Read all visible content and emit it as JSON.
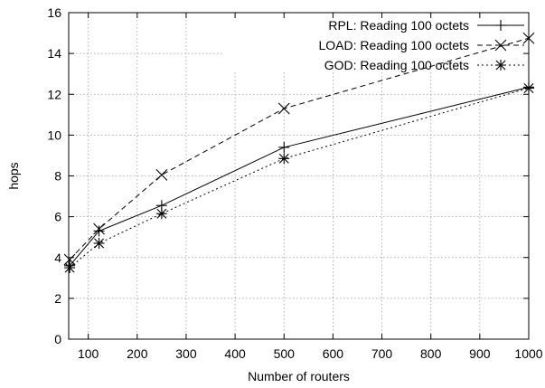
{
  "chart_data": {
    "type": "line",
    "title": "",
    "xlabel": "Number of routers",
    "ylabel": "hops",
    "xlim": [
      60,
      1000
    ],
    "ylim": [
      0,
      16
    ],
    "xticks": [
      100,
      200,
      300,
      400,
      500,
      600,
      700,
      800,
      900,
      1000
    ],
    "yticks": [
      0,
      2,
      4,
      6,
      8,
      10,
      12,
      14,
      16
    ],
    "grid": true,
    "legend_position": "top-right",
    "series": [
      {
        "name": "RPL: Reading 100 octets",
        "line_style": "solid",
        "marker": "plus",
        "x": [
          62,
          122,
          250,
          500,
          1000
        ],
        "y": [
          3.6,
          5.3,
          6.55,
          9.4,
          12.35
        ]
      },
      {
        "name": "LOAD: Reading 100 octets",
        "line_style": "dashed",
        "marker": "cross",
        "x": [
          62,
          122,
          250,
          500,
          1000
        ],
        "y": [
          3.9,
          5.4,
          8.05,
          11.3,
          14.75
        ]
      },
      {
        "name": "GOD: Reading 100 octets",
        "line_style": "dotted",
        "marker": "star",
        "x": [
          62,
          122,
          250,
          500,
          1000
        ],
        "y": [
          3.5,
          4.7,
          6.15,
          8.85,
          12.3
        ]
      }
    ]
  }
}
